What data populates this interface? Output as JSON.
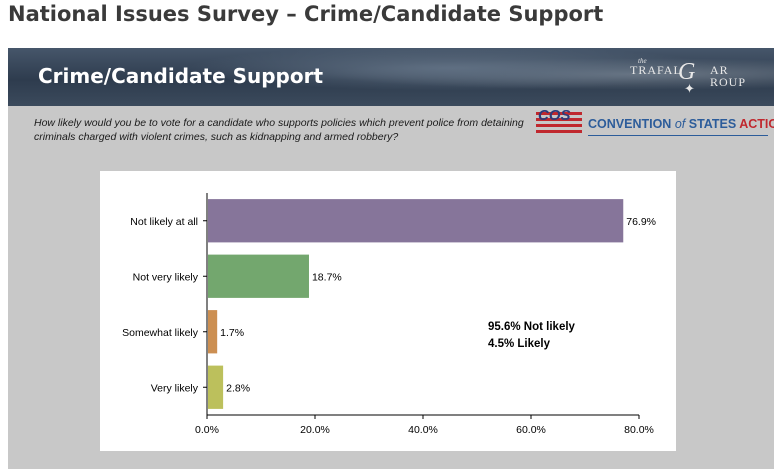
{
  "page_title": "National Issues Survey – Crime/Candidate Support",
  "slide": {
    "title": "Crime/Candidate Support",
    "brand": {
      "the": "the",
      "line1": "TRAFAL",
      "g": "G",
      "line2": "AR",
      "line3": "ROUP"
    },
    "question": "How likely would you be to vote for a candidate who supports policies which prevent police from detaining criminals charged with violent crimes, such as kidnapping and armed robbery?",
    "cos_logo": {
      "letters": "COS",
      "text_a": "CONVENTION",
      "text_of": "of",
      "text_b": "STATES",
      "text_c": "ACTION"
    }
  },
  "chart_data": {
    "type": "bar",
    "orientation": "horizontal",
    "categories": [
      "Not likely at all",
      "Not very likely",
      "Somewhat likely",
      "Very likely"
    ],
    "values": [
      76.9,
      18.7,
      1.7,
      2.8
    ],
    "value_labels": [
      "76.9%",
      "18.7%",
      "1.7%",
      "2.8%"
    ],
    "colors": [
      "#86759a",
      "#73a76e",
      "#cc8f52",
      "#bcc05c"
    ],
    "xlim": [
      0,
      80
    ],
    "xticks": [
      0,
      20,
      40,
      60,
      80
    ],
    "xtick_labels": [
      "0.0%",
      "20.0%",
      "40.0%",
      "60.0%",
      "80.0%"
    ],
    "grid": false,
    "annotations": [
      "95.6% Not likely",
      "4.5% Likely"
    ]
  },
  "colors": {
    "cos_blue": "#2c5c9a",
    "cos_red": "#c0282e"
  }
}
